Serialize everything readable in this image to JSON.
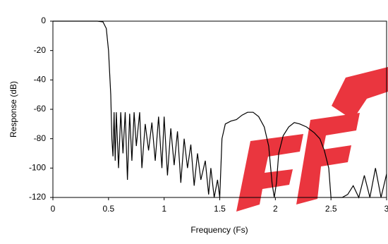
{
  "chart_data": {
    "type": "line",
    "x_label": "Frequency (Fs)",
    "y_label": "Response (dB)",
    "xlim": [
      0,
      3
    ],
    "xticks": [
      0,
      0.5,
      1,
      1.5,
      2,
      2.5,
      3
    ],
    "ylim": [
      -120,
      0
    ],
    "yticks": [
      0,
      -20,
      -40,
      -60,
      -80,
      -100,
      -120
    ],
    "grid": false,
    "series": [
      {
        "color": "#000000",
        "x": [
          0,
          0.1,
          0.2,
          0.3,
          0.4,
          0.45,
          0.48,
          0.5,
          0.52,
          0.53,
          0.54,
          0.55,
          0.56,
          0.57,
          0.59,
          0.61,
          0.63,
          0.65,
          0.67,
          0.69,
          0.71,
          0.73,
          0.75,
          0.78,
          0.8,
          0.83,
          0.86,
          0.89,
          0.92,
          0.95,
          0.98,
          1.0,
          1.03,
          1.06,
          1.09,
          1.12,
          1.15,
          1.18,
          1.21,
          1.24,
          1.27,
          1.3,
          1.33,
          1.37,
          1.4,
          1.42,
          1.45,
          1.48,
          1.5,
          1.52,
          1.55,
          1.6,
          1.65,
          1.7,
          1.75,
          1.8,
          1.85,
          1.9,
          1.94,
          1.97,
          1.99,
          2.01,
          2.03,
          2.07,
          2.12,
          2.17,
          2.22,
          2.28,
          2.35,
          2.4,
          2.44,
          2.48,
          2.5,
          2.6,
          2.65,
          2.7,
          2.75,
          2.8,
          2.85,
          2.9,
          2.95,
          3.0
        ],
        "values": [
          0,
          0,
          0,
          0,
          0,
          -0.5,
          -5,
          -20,
          -50,
          -80,
          -92,
          -62,
          -95,
          -62,
          -100,
          -62,
          -90,
          -62,
          -108,
          -63,
          -95,
          -62,
          -85,
          -62,
          -100,
          -70,
          -88,
          -69,
          -95,
          -65,
          -100,
          -65,
          -105,
          -73,
          -98,
          -75,
          -110,
          -80,
          -100,
          -84,
          -112,
          -90,
          -108,
          -95,
          -118,
          -100,
          -120,
          -108,
          -120,
          -80,
          -70,
          -68,
          -67,
          -64,
          -62,
          -62,
          -65,
          -72,
          -85,
          -110,
          -120,
          -110,
          -90,
          -78,
          -72,
          -69,
          -70,
          -72,
          -76,
          -80,
          -88,
          -100,
          -120,
          -120,
          -118,
          -112,
          -120,
          -105,
          -120,
          -100,
          -120,
          -104
        ]
      }
    ]
  }
}
